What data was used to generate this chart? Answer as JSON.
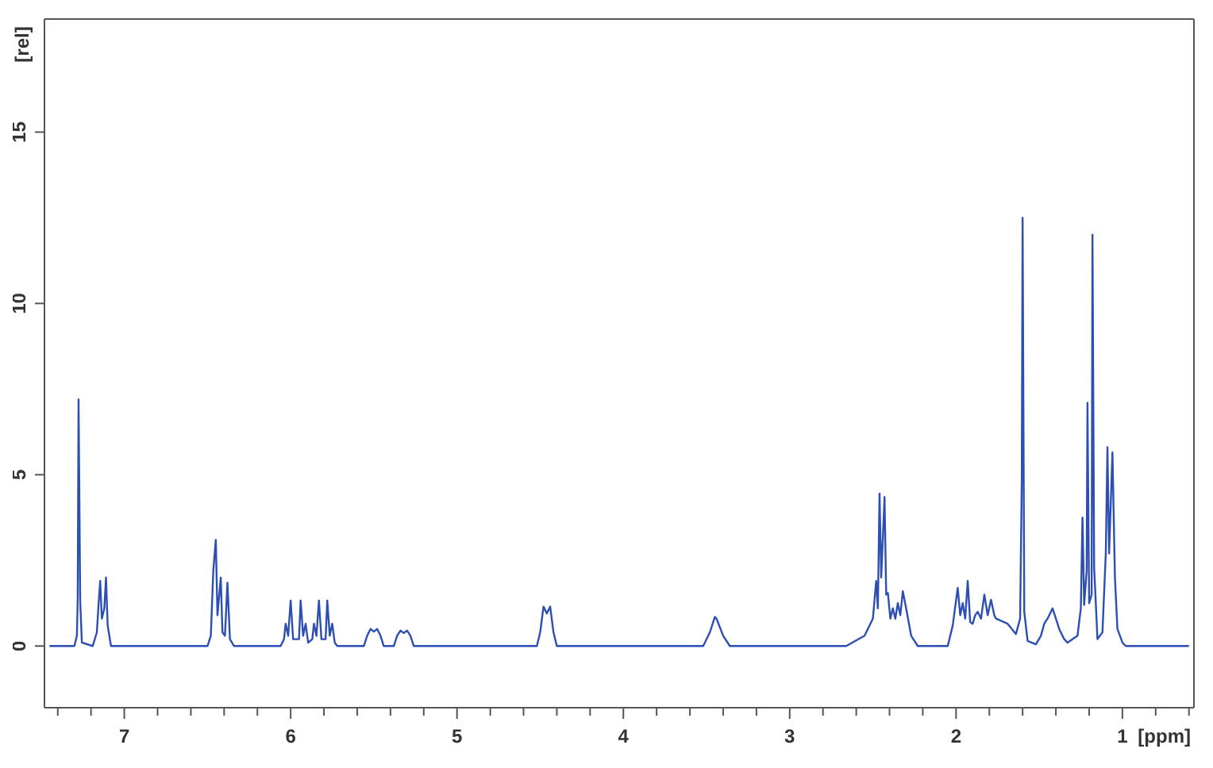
{
  "chart_data": {
    "type": "line",
    "xlabel": "[ppm]",
    "ylabel": "[rel]",
    "xlim": [
      7.48,
      0.57
    ],
    "ylim": [
      -1.8,
      18.3
    ],
    "xticks": [
      {
        "value": 7.4,
        "label": null
      },
      7,
      {
        "value": 7.2,
        "label": null
      },
      {
        "value": 6.8,
        "label": null
      },
      {
        "value": 6.6,
        "label": null
      },
      {
        "value": 6.4,
        "label": null
      },
      {
        "value": 6.2,
        "label": null
      },
      6,
      {
        "value": 5.8,
        "label": null
      },
      {
        "value": 5.6,
        "label": null
      },
      {
        "value": 5.4,
        "label": null
      },
      {
        "value": 5.2,
        "label": null
      },
      5,
      {
        "value": 4.8,
        "label": null
      },
      {
        "value": 4.6,
        "label": null
      },
      {
        "value": 4.4,
        "label": null
      },
      {
        "value": 4.2,
        "label": null
      },
      4,
      {
        "value": 3.8,
        "label": null
      },
      {
        "value": 3.6,
        "label": null
      },
      {
        "value": 3.4,
        "label": null
      },
      {
        "value": 3.2,
        "label": null
      },
      3,
      {
        "value": 2.8,
        "label": null
      },
      {
        "value": 2.6,
        "label": null
      },
      {
        "value": 2.4,
        "label": null
      },
      {
        "value": 2.2,
        "label": null
      },
      2,
      {
        "value": 1.8,
        "label": null
      },
      {
        "value": 1.6,
        "label": null
      },
      {
        "value": 1.4,
        "label": null
      },
      {
        "value": 1.2,
        "label": null
      },
      1,
      {
        "value": 0.8,
        "label": null
      },
      {
        "value": 0.6,
        "label": null
      }
    ],
    "yticks": [
      0,
      5,
      10,
      15
    ],
    "legend": false,
    "marker": "none",
    "line_style": "solid",
    "series": [
      {
        "color": "#2d4fb4",
        "x": [
          7.45,
          7.3,
          7.285,
          7.28,
          7.275,
          7.265,
          7.255,
          7.19,
          7.165,
          7.155,
          7.145,
          7.135,
          7.12,
          7.11,
          7.1,
          7.08,
          6.5,
          6.48,
          6.465,
          6.45,
          6.44,
          6.42,
          6.41,
          6.395,
          6.38,
          6.365,
          6.34,
          6.06,
          6.04,
          6.03,
          6.015,
          6.0,
          5.985,
          5.95,
          5.94,
          5.925,
          5.91,
          5.895,
          5.87,
          5.86,
          5.845,
          5.83,
          5.815,
          5.79,
          5.78,
          5.765,
          5.75,
          5.735,
          5.72,
          5.56,
          5.54,
          5.52,
          5.5,
          5.48,
          5.46,
          5.44,
          5.38,
          5.36,
          5.34,
          5.32,
          5.3,
          5.28,
          5.26,
          4.52,
          4.5,
          4.48,
          4.46,
          4.44,
          4.42,
          4.4,
          3.52,
          3.48,
          3.45,
          3.44,
          3.4,
          3.36,
          2.66,
          2.55,
          2.5,
          2.48,
          2.47,
          2.46,
          2.45,
          2.43,
          2.42,
          2.41,
          2.395,
          2.38,
          2.365,
          2.35,
          2.335,
          2.32,
          2.3,
          2.27,
          2.23,
          2.05,
          2.02,
          1.99,
          1.975,
          1.96,
          1.945,
          1.93,
          1.915,
          1.9,
          1.885,
          1.87,
          1.85,
          1.83,
          1.81,
          1.79,
          1.77,
          1.76,
          1.69,
          1.64,
          1.615,
          1.605,
          1.6,
          1.59,
          1.57,
          1.52,
          1.49,
          1.47,
          1.45,
          1.42,
          1.4,
          1.38,
          1.35,
          1.33,
          1.27,
          1.25,
          1.24,
          1.23,
          1.215,
          1.21,
          1.2,
          1.185,
          1.18,
          1.17,
          1.15,
          1.12,
          1.1,
          1.09,
          1.08,
          1.06,
          1.045,
          1.03,
          1.0,
          0.98,
          0.6
        ],
        "values": [
          0,
          0,
          0.3,
          1.4,
          7.2,
          1.3,
          0.1,
          0,
          0.4,
          1.2,
          1.9,
          0.8,
          1.1,
          2.0,
          0.6,
          0,
          0,
          0.3,
          2.2,
          3.1,
          0.9,
          2.0,
          0.4,
          0.3,
          1.85,
          0.2,
          0,
          0,
          0.2,
          0.65,
          0.3,
          1.33,
          0.2,
          0.2,
          1.33,
          0.3,
          0.65,
          0.1,
          0.2,
          0.65,
          0.3,
          1.33,
          0.2,
          0.2,
          1.33,
          0.3,
          0.65,
          0.1,
          0,
          0,
          0.3,
          0.5,
          0.42,
          0.5,
          0.3,
          0,
          0,
          0.3,
          0.45,
          0.38,
          0.45,
          0.3,
          0,
          0,
          0.4,
          1.15,
          0.95,
          1.15,
          0.4,
          0,
          0,
          0.4,
          0.85,
          0.8,
          0.3,
          0,
          0,
          0.3,
          0.8,
          1.9,
          1.1,
          4.45,
          2.0,
          4.35,
          1.5,
          1.55,
          0.8,
          1.1,
          0.8,
          1.25,
          0.9,
          1.6,
          1.1,
          0.3,
          0,
          0,
          0.6,
          1.7,
          0.9,
          1.25,
          0.8,
          1.9,
          0.7,
          0.65,
          0.9,
          1.0,
          0.8,
          1.5,
          0.9,
          1.35,
          0.9,
          0.8,
          0.65,
          0.35,
          0.8,
          4.8,
          12.5,
          1.0,
          0.15,
          0.05,
          0.3,
          0.65,
          0.8,
          1.1,
          0.8,
          0.5,
          0.2,
          0.1,
          0.3,
          1.1,
          3.75,
          1.2,
          2.2,
          7.1,
          1.25,
          1.5,
          12.0,
          2.3,
          0.2,
          0.4,
          2.7,
          5.8,
          2.7,
          5.65,
          2.0,
          0.5,
          0.1,
          0,
          0
        ]
      }
    ]
  }
}
